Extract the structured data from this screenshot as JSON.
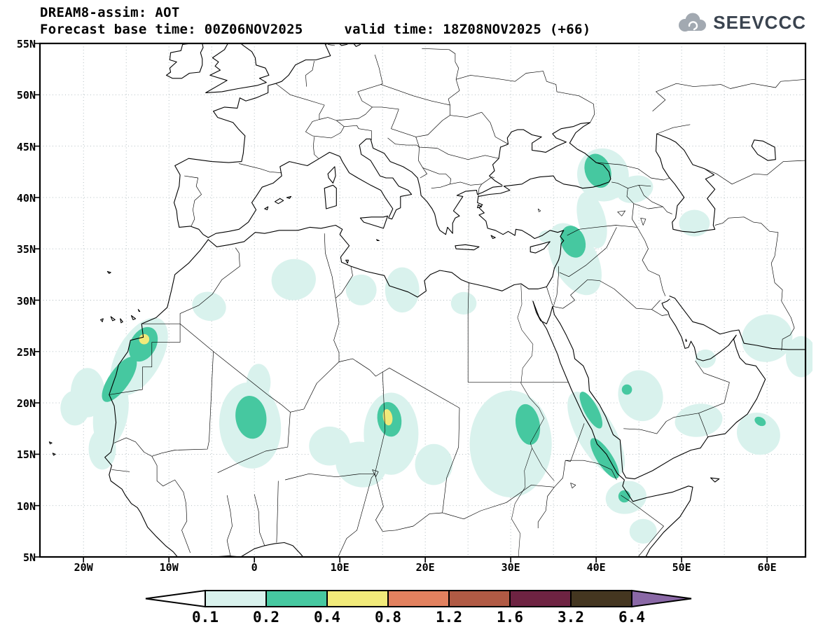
{
  "header": {
    "title": "DREAM8-assim: AOT",
    "subtitle": "Forecast base time: 00Z06NOV2025     valid time: 18Z08NOV2025 (+66)",
    "logo_text": "SEEVCCC"
  },
  "map": {
    "lat_ticks": [
      "55N",
      "50N",
      "45N",
      "40N",
      "35N",
      "30N",
      "25N",
      "20N",
      "15N",
      "10N",
      "5N"
    ],
    "lat_values": [
      55,
      50,
      45,
      40,
      35,
      30,
      25,
      20,
      15,
      10,
      5
    ],
    "lon_ticks": [
      "20W",
      "10W",
      "0",
      "10E",
      "20E",
      "30E",
      "40E",
      "50E",
      "60E"
    ],
    "lon_values": [
      -20,
      -10,
      0,
      10,
      20,
      30,
      40,
      50,
      60
    ]
  },
  "colorbar": {
    "labels": [
      "0.1",
      "0.2",
      "0.4",
      "0.8",
      "1.2",
      "1.6",
      "3.2",
      "6.4"
    ],
    "segment_colors": [
      "#d9f2ed",
      "#46c8a0",
      "#f1ea7a",
      "#e2815f",
      "#b05a44",
      "#6e2342",
      "#443620"
    ],
    "below_color": "#ffffff",
    "above_color": "#8a68a6"
  },
  "chart_data": {
    "type": "heatmap",
    "title": "DREAM8-assim: AOT",
    "subtitle": "Forecast base time: 00Z06NOV2025  valid time: 18Z08NOV2025 (+66)",
    "extent": {
      "lon": [
        -25.1,
        64.5
      ],
      "lat": [
        5,
        55
      ]
    },
    "levels": [
      0.1,
      0.2,
      0.4,
      0.8,
      1.2,
      1.6,
      3.2,
      6.4
    ],
    "legend_position": "bottom",
    "grid": "dotted 5-degree",
    "features": [
      {
        "region": "Mauritania / Western Sahara coast",
        "lon": -13,
        "lat": 25,
        "aot": "0.2-0.4, local max 0.4-0.8 near 13W 26N"
      },
      {
        "region": "Northern Mali",
        "lon": 0,
        "lat": 18.6,
        "aot": "0.2-0.4"
      },
      {
        "region": "Bodele depression, Chad",
        "lon": 15.7,
        "lat": 18.6,
        "aot": "0.4-0.8 core in 0.2-0.4 patch"
      },
      {
        "region": "Central Sudan",
        "lon": 32,
        "lat": 18,
        "aot": "0.2-0.4 core in broad 0.1-0.2 area"
      },
      {
        "region": "Red Sea west coast / Eritrea",
        "lon": 40,
        "lat": 17,
        "aot": "0.2-0.4 streaks"
      },
      {
        "region": "Syria / northern Iraq",
        "lon": 37.3,
        "lat": 35.7,
        "aot": "0.2-0.4"
      },
      {
        "region": "Caucasus (Georgia / Azerbaijan)",
        "lon": 40.5,
        "lat": 42.5,
        "aot": "0.2-0.4"
      },
      {
        "region": "Horn of Africa (Djibouti)",
        "lon": 43.3,
        "lat": 10.9,
        "aot": "0.2-0.4 spot"
      },
      {
        "region": "Central Algeria / Libya",
        "lon": 10,
        "lat": 31,
        "aot": "0.1-0.2 patches"
      },
      {
        "region": "Arabian Peninsula / Oman coast / Gulf",
        "lon": 52,
        "lat": 20,
        "aot": "0.1-0.2 scattered patches"
      }
    ]
  }
}
